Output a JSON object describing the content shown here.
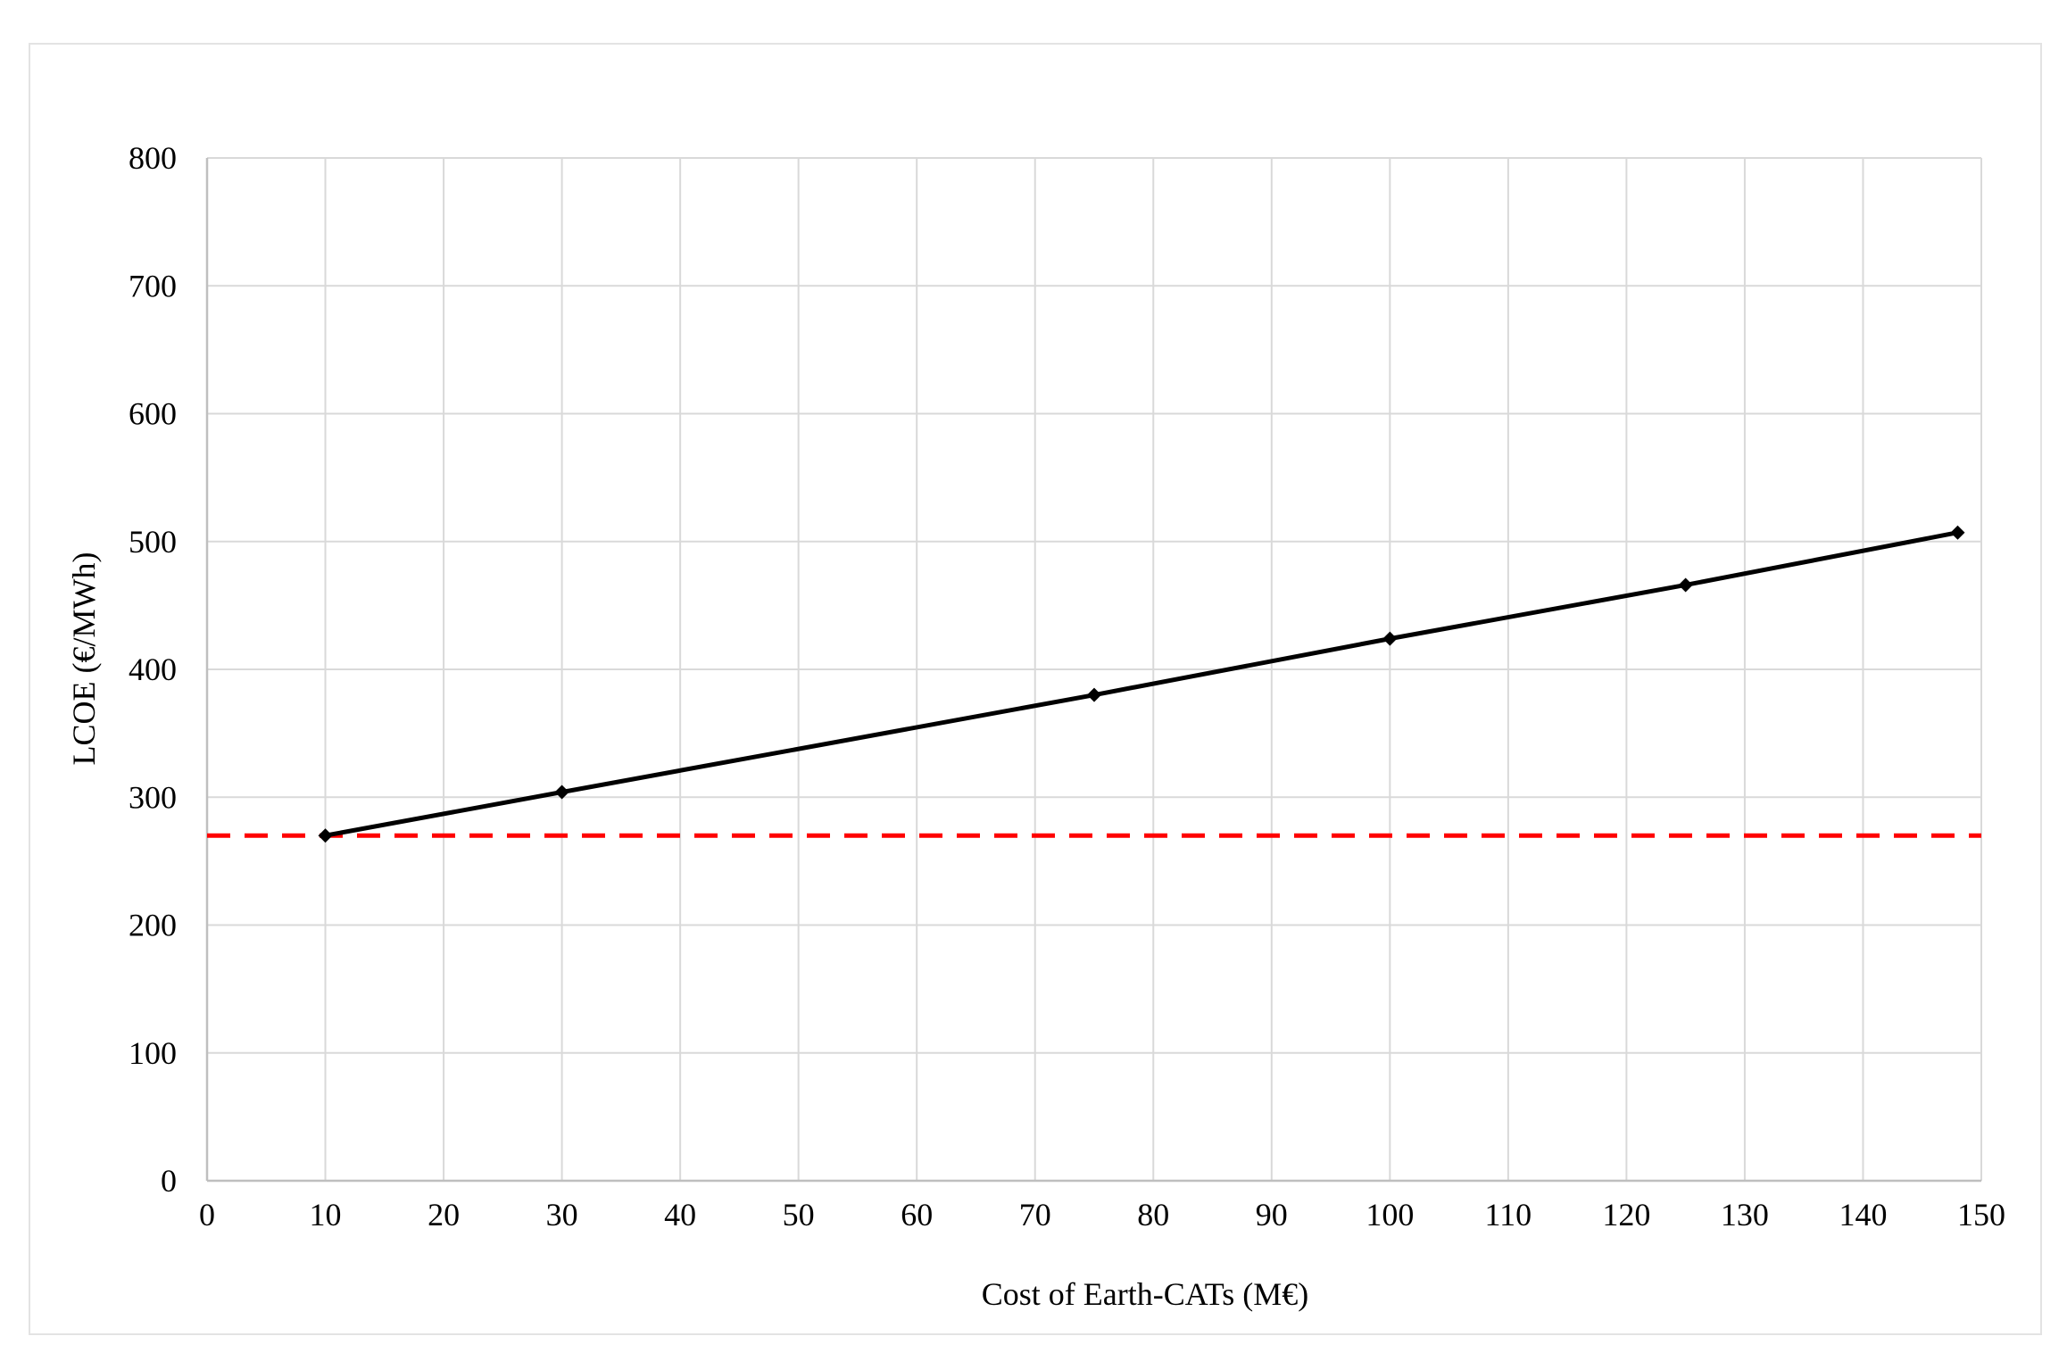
{
  "chart_data": {
    "type": "line",
    "title": "",
    "xlabel": "Cost of Earth-CATs (M€)",
    "ylabel": "LCOE (€/MWh)",
    "xlim": [
      0,
      150
    ],
    "ylim": [
      0,
      800
    ],
    "x_ticks": [
      0,
      10,
      20,
      30,
      40,
      50,
      60,
      70,
      80,
      90,
      100,
      110,
      120,
      130,
      140,
      150
    ],
    "y_ticks": [
      0,
      100,
      200,
      300,
      400,
      500,
      600,
      700,
      800
    ],
    "grid": true,
    "legend": "none",
    "series": [
      {
        "style": "solid",
        "marker": "diamond",
        "color": "#000000",
        "x": [
          10,
          30,
          75,
          100,
          125,
          148
        ],
        "y": [
          270,
          304,
          380,
          424,
          466,
          507
        ]
      }
    ],
    "reference_lines": [
      {
        "orientation": "horizontal",
        "y": 270,
        "style": "dashed",
        "color": "#ff0000"
      }
    ]
  }
}
